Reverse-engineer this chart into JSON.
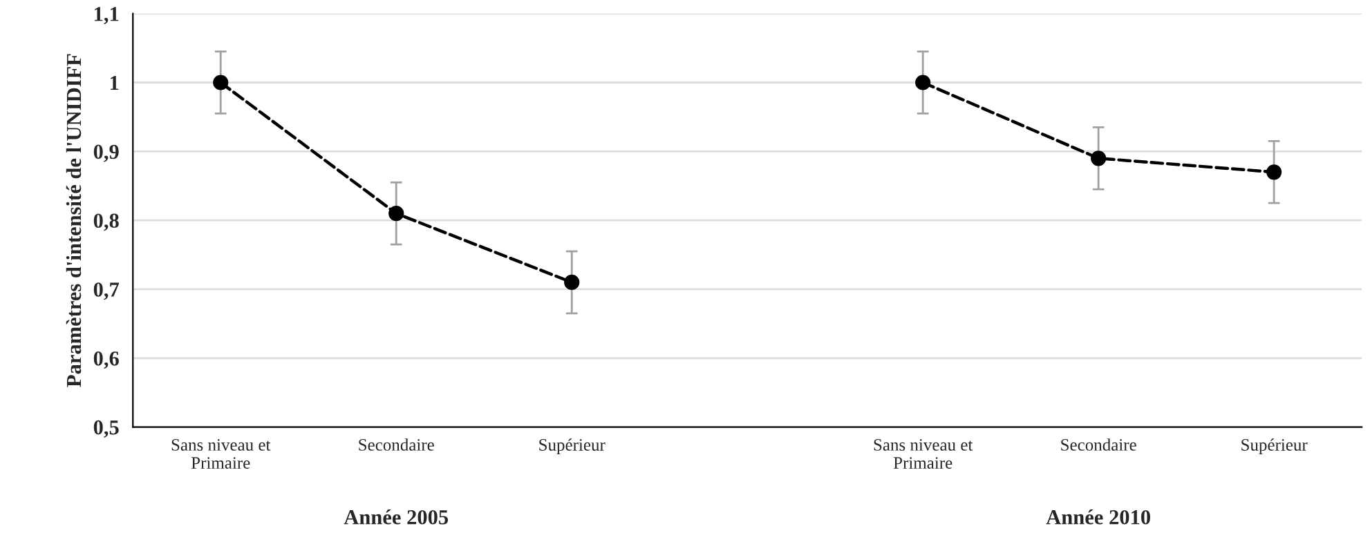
{
  "chart_data": {
    "type": "line",
    "ylabel": "Paramètres d'intensité de l'UNIDIFF",
    "categories": [
      "Sans niveau et\nPrimaire",
      "Secondaire",
      "Supérieur",
      null,
      "Sans niveau et\nPrimaire",
      "Secondaire",
      "Supérieur"
    ],
    "series": [
      {
        "color": "#000000",
        "values": [
          1,
          0.81,
          0.71,
          null,
          null,
          null,
          null
        ],
        "errors": [
          0.045,
          0.045,
          0.045,
          null,
          null,
          null,
          null
        ]
      },
      {
        "color": "#000000",
        "values": [
          null,
          null,
          null,
          null,
          1,
          0.89,
          0.87
        ],
        "errors": [
          null,
          null,
          null,
          null,
          0.045,
          0.045,
          0.045
        ]
      }
    ],
    "annotations": [
      "Année 2005",
      "Année 2010"
    ],
    "ylim": [
      0.5,
      1.1
    ],
    "yticks": [
      {
        "value": 0.5,
        "label": "0,5"
      },
      {
        "value": 0.6,
        "label": "0,6"
      },
      {
        "value": 0.7,
        "label": "0,7"
      },
      {
        "value": 0.8,
        "label": "0,8"
      },
      {
        "value": 0.9,
        "label": "0,9"
      },
      {
        "value": 1,
        "label": "1"
      },
      {
        "value": 1.1,
        "label": "1,1"
      }
    ],
    "grid": "y",
    "marker": "circle",
    "line_style": "dashed"
  }
}
